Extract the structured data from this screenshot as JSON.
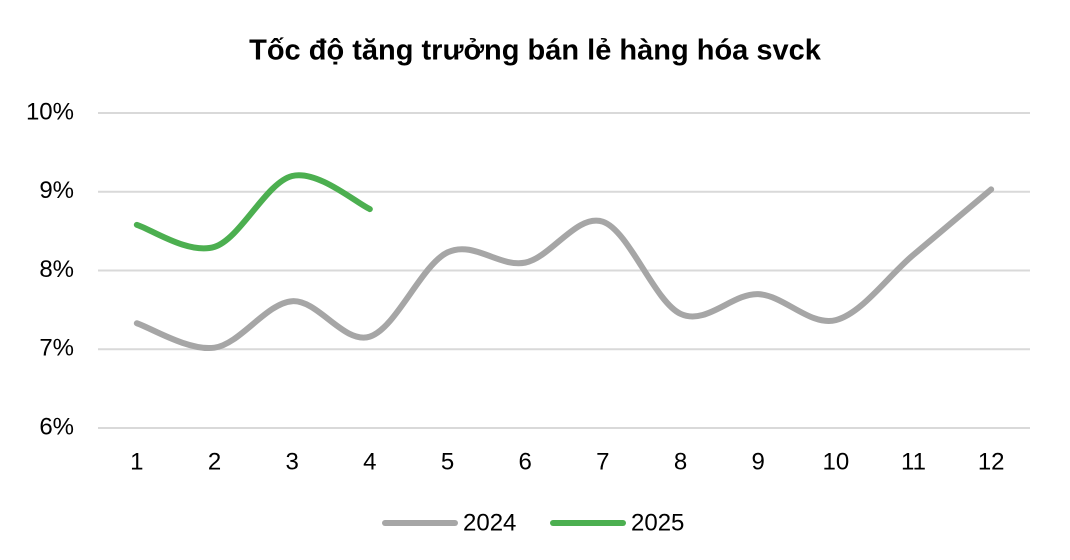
{
  "chart_data": {
    "type": "line",
    "title": "Tốc độ tăng trưởng bán lẻ hàng hóa svck",
    "categories": [
      "1",
      "2",
      "3",
      "4",
      "5",
      "6",
      "7",
      "8",
      "9",
      "10",
      "11",
      "12"
    ],
    "series": [
      {
        "name": "2024",
        "color": "#a6a6a6",
        "values": [
          7.33,
          7.02,
          7.61,
          7.16,
          8.23,
          8.1,
          8.62,
          7.45,
          7.7,
          7.37,
          8.2,
          9.03
        ]
      },
      {
        "name": "2025",
        "color": "#4caf50",
        "values": [
          8.58,
          8.3,
          9.2,
          8.78,
          null,
          null,
          null,
          null,
          null,
          null,
          null,
          null
        ]
      }
    ],
    "ylim": [
      6,
      10
    ],
    "yticks": [
      {
        "value": 6,
        "label": "6%"
      },
      {
        "value": 7,
        "label": "7%"
      },
      {
        "value": 8,
        "label": "8%"
      },
      {
        "value": 9,
        "label": "9%"
      },
      {
        "value": 10,
        "label": "10%"
      }
    ],
    "grid": true,
    "smooth": true,
    "legend": "bottom"
  }
}
